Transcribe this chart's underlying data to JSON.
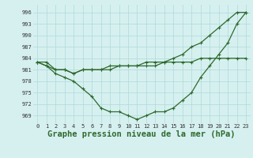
{
  "title": "Graphe pression niveau de la mer (hPa)",
  "x": [
    0,
    1,
    2,
    3,
    4,
    5,
    6,
    7,
    8,
    9,
    10,
    11,
    12,
    13,
    14,
    15,
    16,
    17,
    18,
    19,
    20,
    21,
    22,
    23
  ],
  "series_curve": [
    983,
    982,
    980,
    979,
    978,
    976,
    974,
    971,
    970,
    970,
    969,
    968,
    969,
    970,
    970,
    971,
    973,
    975,
    979,
    982,
    985,
    988,
    993,
    996
  ],
  "series_flat": [
    983,
    982,
    981,
    981,
    980,
    981,
    981,
    981,
    982,
    982,
    982,
    982,
    982,
    982,
    983,
    983,
    983,
    983,
    984,
    984,
    984,
    984,
    984,
    984
  ],
  "series_rise": [
    983,
    983,
    981,
    981,
    980,
    981,
    981,
    981,
    981,
    982,
    982,
    982,
    983,
    983,
    983,
    984,
    985,
    987,
    988,
    990,
    992,
    994,
    996,
    996
  ],
  "ylim_min": 967,
  "ylim_max": 998,
  "yticks": [
    969,
    972,
    975,
    978,
    981,
    984,
    987,
    990,
    993,
    996
  ],
  "line_color": "#2d6a2d",
  "bg_color": "#d6f0f0",
  "grid_color": "#b0d8d8",
  "title_fontsize": 7.5,
  "tick_fontsize": 5.0
}
